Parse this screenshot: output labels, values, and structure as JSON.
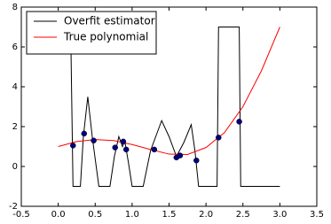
{
  "chart_data": {
    "type": "line",
    "xlim": [
      -0.5,
      3.5
    ],
    "ylim": [
      -2,
      8
    ],
    "xticks": [
      -0.5,
      {
        "value": 0,
        "label": "0.0"
      },
      0.5,
      {
        "value": 1,
        "label": "1.0"
      },
      1.5,
      {
        "value": 2,
        "label": "2.0"
      },
      2.5,
      {
        "value": 3,
        "label": "3.0"
      },
      3.5
    ],
    "yticks": [
      -2,
      0,
      2,
      4,
      6,
      8
    ],
    "grid": false,
    "legend": "upper left",
    "series": [
      {
        "name": "Overfit estimator",
        "color": "#000000",
        "kind": "line",
        "x": [
          0.17,
          0.2,
          0.3,
          0.34,
          0.4,
          0.46,
          0.55,
          0.7,
          0.76,
          0.82,
          0.87,
          0.9,
          0.95,
          1.0,
          1.15,
          1.25,
          1.4,
          1.5,
          1.6,
          1.7,
          1.8,
          1.85,
          1.9,
          2.15,
          2.17,
          2.45,
          2.47,
          3.0
        ],
        "values": [
          6.5,
          -1,
          -1,
          1.5,
          3.5,
          1.5,
          -1,
          -1,
          0.5,
          1.5,
          1.0,
          1.3,
          0.2,
          -1,
          -1,
          0.8,
          2.3,
          1.5,
          0.5,
          1.2,
          2.1,
          0.8,
          -1,
          -1,
          7,
          7,
          -1,
          -1
        ]
      },
      {
        "name": "True polynomial",
        "color": "#ff0000",
        "kind": "line",
        "x": [
          0,
          0.25,
          0.5,
          0.75,
          1.0,
          1.25,
          1.5,
          1.75,
          2.0,
          2.25,
          2.5,
          2.75,
          3.0
        ],
        "values": [
          1.0,
          1.25,
          1.35,
          1.3,
          1.1,
          0.85,
          0.62,
          0.6,
          0.95,
          1.7,
          3.0,
          4.8,
          7.0
        ]
      },
      {
        "color": "#000080",
        "kind": "scatter",
        "x": [
          0.2,
          0.35,
          0.48,
          0.77,
          0.88,
          0.92,
          1.3,
          1.6,
          1.65,
          1.87,
          2.17,
          2.45
        ],
        "values": [
          1.05,
          1.65,
          1.3,
          0.95,
          1.25,
          0.85,
          0.85,
          0.45,
          0.55,
          0.3,
          1.45,
          2.25
        ]
      }
    ]
  }
}
